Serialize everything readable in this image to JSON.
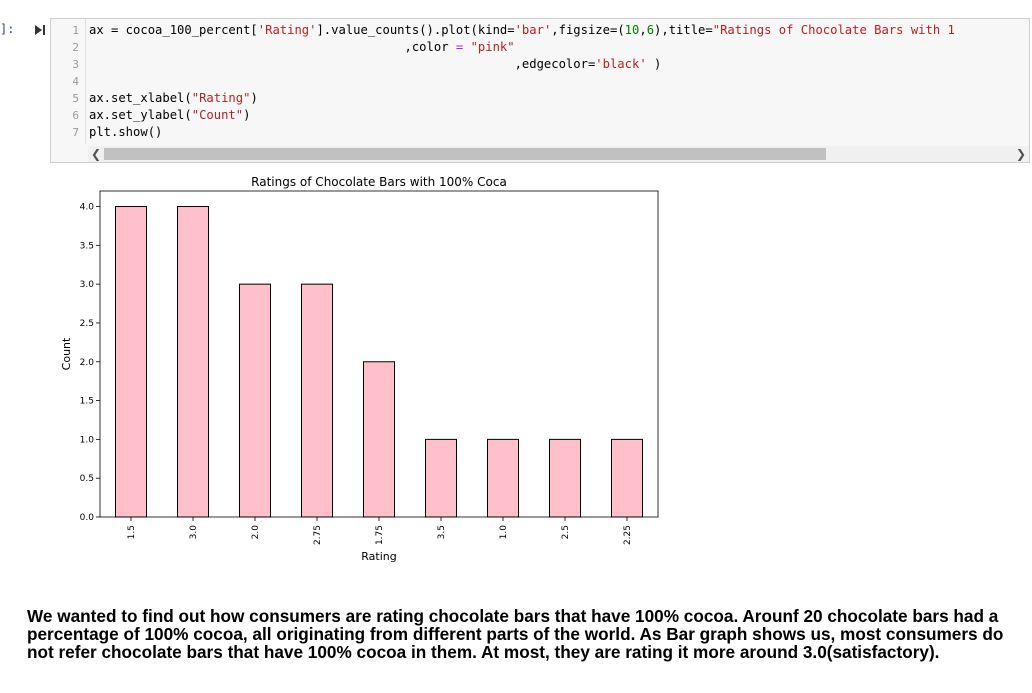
{
  "prompt": "]:",
  "icons": {
    "run": "run-cell-icon",
    "scroll_left": "chevron-left-icon",
    "scroll_right": "chevron-right-icon"
  },
  "code_lines": [
    {
      "n": "1",
      "parts": [
        [
          "ax = cocoa_100_percent[",
          ""
        ],
        [
          "'Rating'",
          "str"
        ],
        [
          "].value_counts().plot(kind=",
          ""
        ],
        [
          "'bar'",
          "str"
        ],
        [
          ",figsize=(",
          ""
        ],
        [
          "10",
          "num"
        ],
        [
          ",",
          ""
        ],
        [
          "6",
          "num"
        ],
        [
          "),title=",
          ""
        ],
        [
          "\"Ratings of Chocolate Bars with 1",
          "str"
        ]
      ]
    },
    {
      "n": "2",
      "parts": [
        [
          "                                           ,color ",
          ""
        ],
        [
          "=",
          "op"
        ],
        [
          " ",
          ""
        ],
        [
          "\"pink\"",
          "str"
        ]
      ]
    },
    {
      "n": "3",
      "parts": [
        [
          "                                                          ,edgecolor=",
          ""
        ],
        [
          "'black'",
          "str"
        ],
        [
          " )",
          ""
        ]
      ]
    },
    {
      "n": "4",
      "parts": [
        [
          "",
          ""
        ]
      ]
    },
    {
      "n": "5",
      "parts": [
        [
          "ax.set_xlabel(",
          ""
        ],
        [
          "\"Rating\"",
          "str"
        ],
        [
          ")",
          ""
        ]
      ]
    },
    {
      "n": "6",
      "parts": [
        [
          "ax.set_ylabel(",
          ""
        ],
        [
          "\"Count\"",
          "str"
        ],
        [
          ")",
          ""
        ]
      ]
    },
    {
      "n": "7",
      "parts": [
        [
          "plt.show()",
          ""
        ]
      ]
    }
  ],
  "chart_data": {
    "type": "bar",
    "title": "Ratings of Chocolate Bars with 100% Coca",
    "xlabel": "Rating",
    "ylabel": "Count",
    "categories": [
      "1.5",
      "3.0",
      "2.0",
      "2.75",
      "1.75",
      "3.5",
      "1.0",
      "2.5",
      "2.25"
    ],
    "values": [
      4,
      4,
      3,
      3,
      2,
      1,
      1,
      1,
      1
    ],
    "ylim": [
      0,
      4.2
    ],
    "yticks": [
      "0.0",
      "0.5",
      "1.0",
      "1.5",
      "2.0",
      "2.5",
      "3.0",
      "3.5",
      "4.0"
    ],
    "bar_color": "#ffc0cb",
    "edge_color": "#000000",
    "grid": false
  },
  "markdown_text": "We wanted to find out how consumers are rating chocolate bars that have 100% cocoa. Arounf 20 chocolate bars had a percentage of 100% cocoa, all originating from different parts of the world. As Bar graph shows us, most consumers do not refer chocolate bars that have 100% cocoa in them. At most, they are rating it more around 3.0(satisfactory)."
}
